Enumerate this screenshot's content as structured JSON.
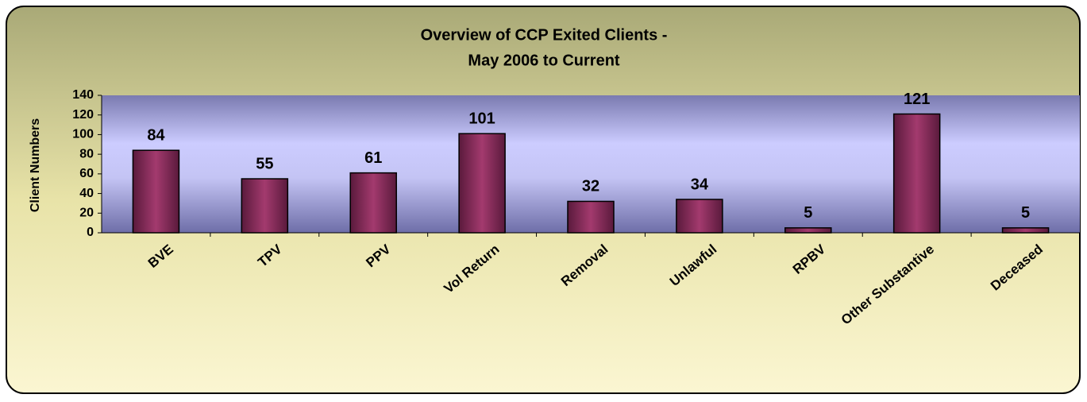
{
  "chart_data": {
    "type": "bar",
    "title": [
      "Overview of CCP Exited Clients -",
      "May 2006 to Current"
    ],
    "y_label": "Client Numbers",
    "categories": [
      "BVE",
      "TPV",
      "PPV",
      "Vol Return",
      "Removal",
      "Unlawful",
      "RPBV",
      "Other Substantive",
      "Deceased"
    ],
    "values": [
      84,
      55,
      61,
      101,
      32,
      34,
      5,
      121,
      5
    ],
    "color": "#993366",
    "ylim": [
      0,
      140
    ],
    "yticks": [
      0,
      20,
      40,
      60,
      80,
      100,
      120,
      140
    ],
    "grid": false
  }
}
